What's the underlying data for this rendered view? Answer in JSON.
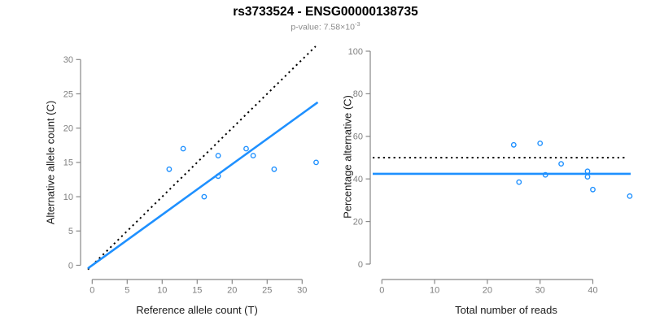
{
  "header": {
    "title": "rs3733524 - ENSG00000138735",
    "pvalue_prefix": "p-value: 7.58×10",
    "pvalue_exponent": "-3"
  },
  "colors": {
    "accent_blue": "#1E90FF",
    "dotted_line": "#000000",
    "axis_line": "#888888",
    "tick_label": "#7F7F7F",
    "axis_title": "#1A1A1A",
    "subtitle_gray": "#8A8A8A"
  },
  "chart_data": [
    {
      "type": "scatter",
      "title": "",
      "xlabel": "Reference allele count (T)",
      "ylabel": "Alternative allele count (C)",
      "xlim": [
        0,
        32
      ],
      "ylim": [
        0,
        31
      ],
      "xticks": [
        0,
        5,
        10,
        15,
        20,
        25,
        30
      ],
      "yticks": [
        0,
        5,
        10,
        15,
        20,
        25,
        30
      ],
      "grid": false,
      "legend": false,
      "points": [
        [
          11,
          14
        ],
        [
          13,
          17
        ],
        [
          16,
          10
        ],
        [
          18,
          13
        ],
        [
          18,
          16
        ],
        [
          22,
          17
        ],
        [
          23,
          16
        ],
        [
          26,
          14
        ],
        [
          32,
          15
        ]
      ],
      "ablines": [
        {
          "name": "identity-line",
          "slope": 1,
          "intercept": 0,
          "style": "dotted",
          "color": "dotted_line"
        },
        {
          "name": "fit-line",
          "slope": 0.7374,
          "intercept": 0,
          "style": "solid",
          "color": "accent_blue"
        }
      ]
    },
    {
      "type": "scatter",
      "title": "",
      "xlabel": "Total number of reads",
      "ylabel": "Percentage alternative (C)",
      "xlim": [
        0,
        47
      ],
      "ylim": [
        0,
        100
      ],
      "xticks": [
        0,
        10,
        20,
        30,
        40
      ],
      "yticks": [
        0,
        20,
        40,
        60,
        80,
        100
      ],
      "grid": false,
      "legend": false,
      "points": [
        [
          25,
          56.0
        ],
        [
          30,
          56.7
        ],
        [
          26,
          38.5
        ],
        [
          31,
          41.9
        ],
        [
          34,
          47.1
        ],
        [
          39,
          43.6
        ],
        [
          39,
          41.0
        ],
        [
          40,
          35.0
        ],
        [
          47,
          31.9
        ]
      ],
      "hlines": [
        {
          "name": "expected-50pct-line",
          "y": 50,
          "style": "dotted",
          "color": "dotted_line"
        },
        {
          "name": "mean-pct-line",
          "y": 42.4,
          "style": "solid",
          "color": "accent_blue"
        }
      ]
    }
  ]
}
